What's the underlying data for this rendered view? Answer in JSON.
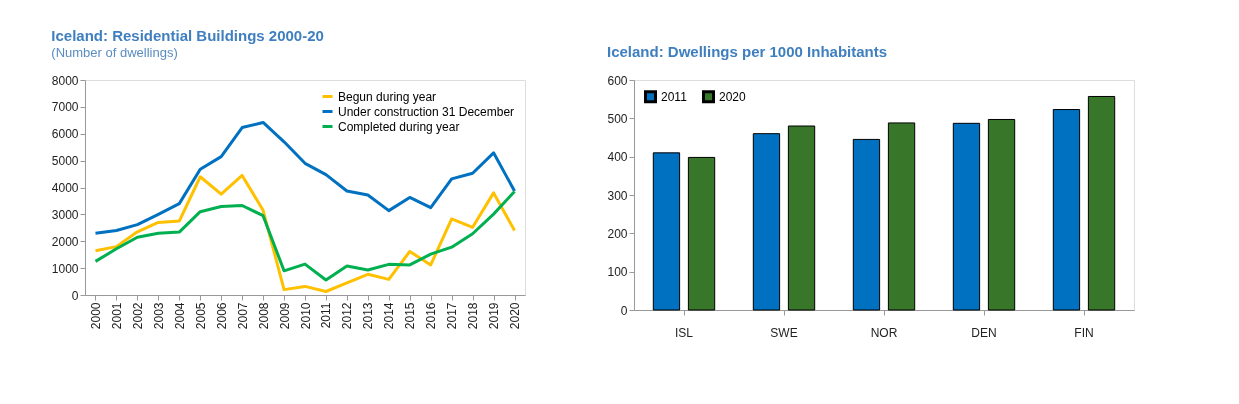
{
  "chart_data": [
    {
      "type": "line",
      "title": "Iceland: Residential Buildings 2000-20",
      "subtitle": "(Number of dwellings)",
      "categories": [
        "2000",
        "2001",
        "2002",
        "2003",
        "2004",
        "2005",
        "2006",
        "2007",
        "2008",
        "2009",
        "2010",
        "2011",
        "2012",
        "2013",
        "2014",
        "2015",
        "2016",
        "2017",
        "2018",
        "2019",
        "2020"
      ],
      "series": [
        {
          "name": "Begun during year",
          "color": "#ffc000",
          "values": [
            1650,
            1800,
            2350,
            2700,
            2750,
            4400,
            3750,
            4450,
            3150,
            200,
            320,
            130,
            450,
            770,
            580,
            1620,
            1120,
            2830,
            2520,
            3800,
            2400
          ]
        },
        {
          "name": "Under construction 31 December",
          "color": "#0070c0",
          "values": [
            2300,
            2400,
            2620,
            3000,
            3400,
            4680,
            5150,
            6230,
            6420,
            5700,
            4900,
            4480,
            3870,
            3720,
            3140,
            3630,
            3250,
            4320,
            4530,
            5290,
            3870
          ]
        },
        {
          "name": "Completed during year",
          "color": "#00b050",
          "values": [
            1250,
            1720,
            2150,
            2300,
            2340,
            3100,
            3290,
            3330,
            2950,
            900,
            1150,
            560,
            1080,
            930,
            1140,
            1120,
            1520,
            1780,
            2280,
            3010,
            3850
          ]
        }
      ],
      "ylim": [
        0,
        8000
      ],
      "yticks": [
        0,
        1000,
        2000,
        3000,
        4000,
        5000,
        6000,
        7000,
        8000
      ],
      "grid": false,
      "legend": "top right",
      "marker": "none",
      "line_style": "solid"
    },
    {
      "type": "bar",
      "title": "Iceland: Dwellings per 1000 Inhabitants",
      "categories": [
        "ISL",
        "SWE",
        "NOR",
        "DEN",
        "FIN"
      ],
      "series": [
        {
          "name": "2011",
          "color": "#0070c0",
          "values": [
            410,
            460,
            445,
            487,
            523
          ]
        },
        {
          "name": "2020",
          "color": "#38762a",
          "values": [
            398,
            480,
            488,
            497,
            557
          ]
        }
      ],
      "ylim": [
        0,
        600
      ],
      "yticks": [
        0,
        100,
        200,
        300,
        400,
        500,
        600
      ],
      "grid": false,
      "legend": "top left"
    }
  ]
}
